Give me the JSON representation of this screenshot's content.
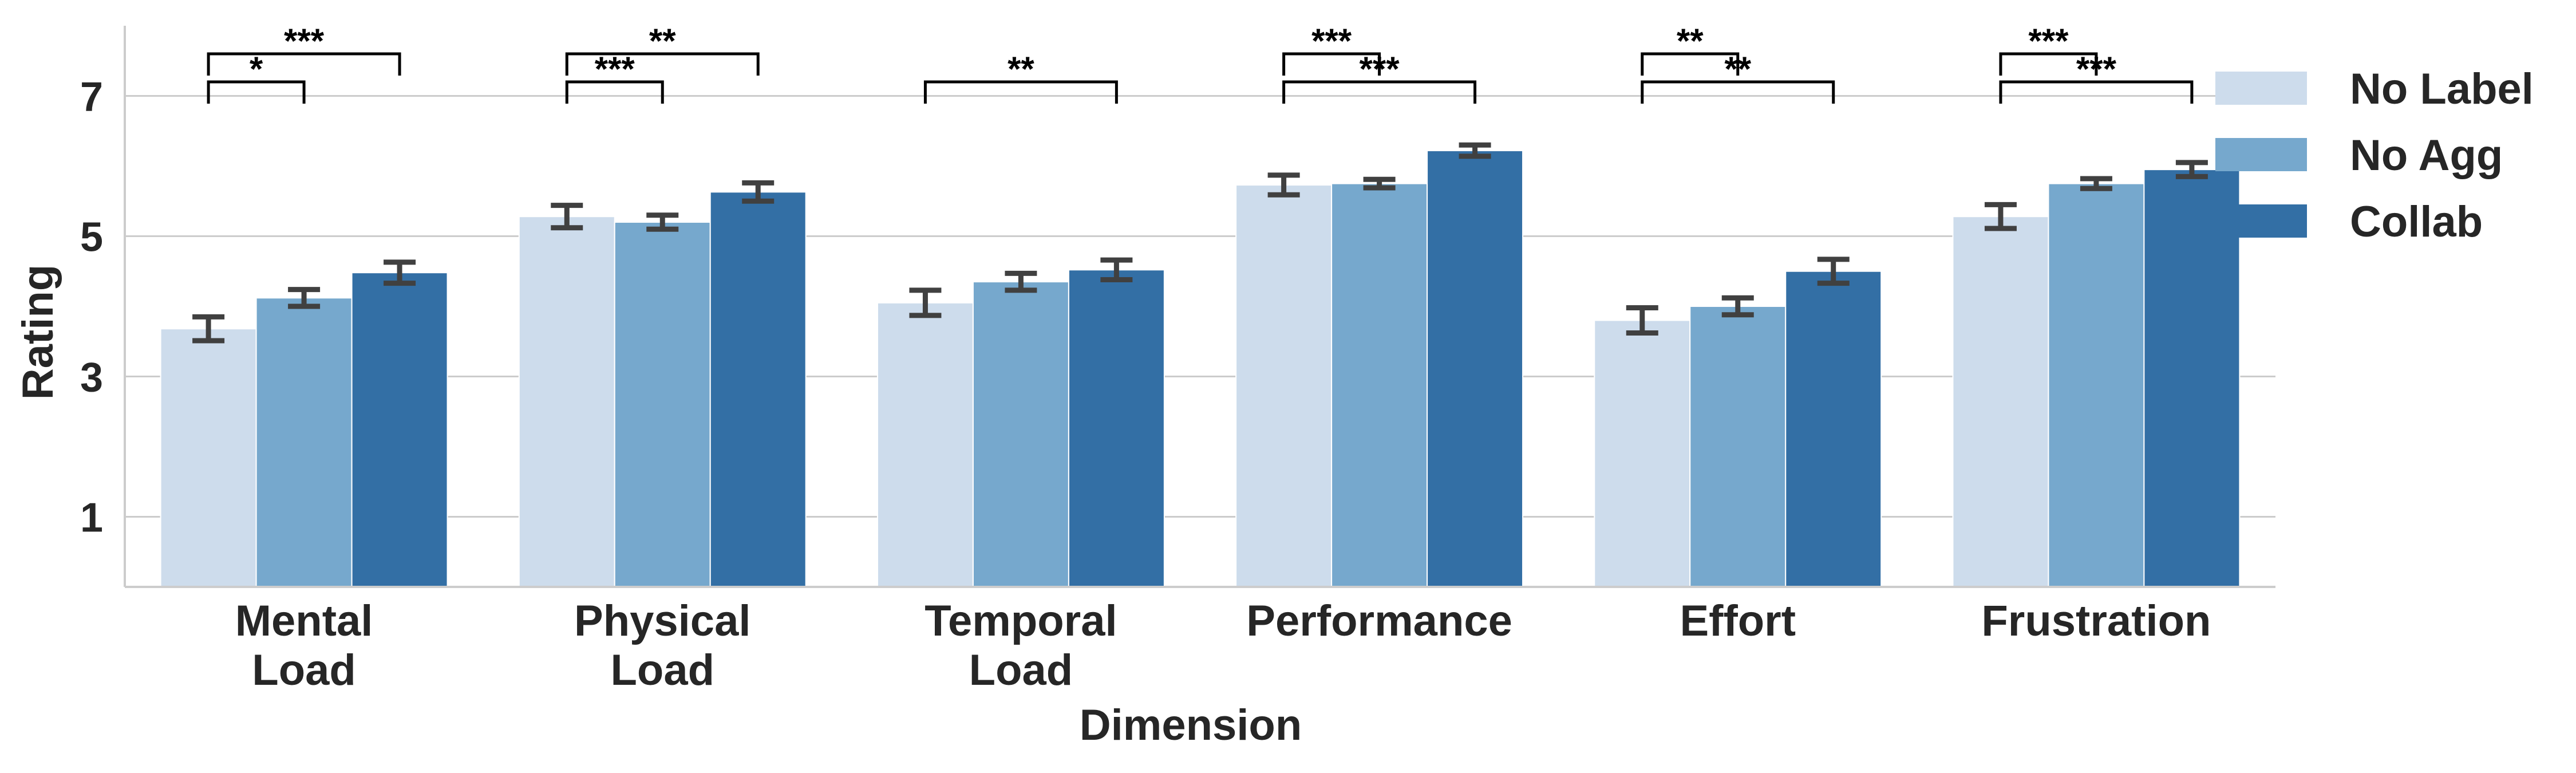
{
  "chart_data": {
    "type": "bar",
    "xlabel": "Dimension",
    "ylabel": "Rating",
    "ylim": [
      0,
      8
    ],
    "yticks": [
      1,
      3,
      5,
      7
    ],
    "grid": "horizontal",
    "legend_position": "right",
    "categories": [
      [
        "Mental",
        "Load"
      ],
      [
        "Physical",
        "Load"
      ],
      [
        "Temporal",
        "Load"
      ],
      [
        "Performance"
      ],
      [
        "Effort"
      ],
      [
        "Frustration"
      ]
    ],
    "series": [
      {
        "name": "No Label",
        "color": "#cddcec",
        "values": [
          3.68,
          5.28,
          4.05,
          5.73,
          3.8,
          5.28
        ],
        "err": [
          0.17,
          0.16,
          0.18,
          0.14,
          0.18,
          0.17
        ]
      },
      {
        "name": "No Agg",
        "color": "#76a8cd",
        "values": [
          4.12,
          5.2,
          4.35,
          5.75,
          4.0,
          5.75
        ],
        "err": [
          0.12,
          0.1,
          0.12,
          0.06,
          0.12,
          0.07
        ]
      },
      {
        "name": "Collab",
        "color": "#336fa5",
        "values": [
          4.48,
          5.63,
          4.52,
          6.22,
          4.5,
          5.95
        ],
        "err": [
          0.15,
          0.13,
          0.14,
          0.08,
          0.17,
          0.1
        ]
      }
    ],
    "significance": [
      {
        "category": 0,
        "from": 0,
        "to": 2,
        "label": "***",
        "level": 1
      },
      {
        "category": 0,
        "from": 0,
        "to": 1,
        "label": "*",
        "level": 0
      },
      {
        "category": 1,
        "from": 0,
        "to": 2,
        "label": "**",
        "level": 1
      },
      {
        "category": 1,
        "from": 0,
        "to": 1,
        "label": "***",
        "level": 0
      },
      {
        "category": 2,
        "from": 0,
        "to": 2,
        "label": "**",
        "level": 0
      },
      {
        "category": 3,
        "from": 0,
        "to": 1,
        "label": "***",
        "level": 1
      },
      {
        "category": 3,
        "from": 0,
        "to": 2,
        "label": "***",
        "level": 0
      },
      {
        "category": 4,
        "from": 0,
        "to": 1,
        "label": "**",
        "level": 1
      },
      {
        "category": 4,
        "from": 0,
        "to": 2,
        "label": "**",
        "level": 0
      },
      {
        "category": 5,
        "from": 0,
        "to": 1,
        "label": "***",
        "level": 1
      },
      {
        "category": 5,
        "from": 0,
        "to": 2,
        "label": "***",
        "level": 0
      }
    ]
  }
}
